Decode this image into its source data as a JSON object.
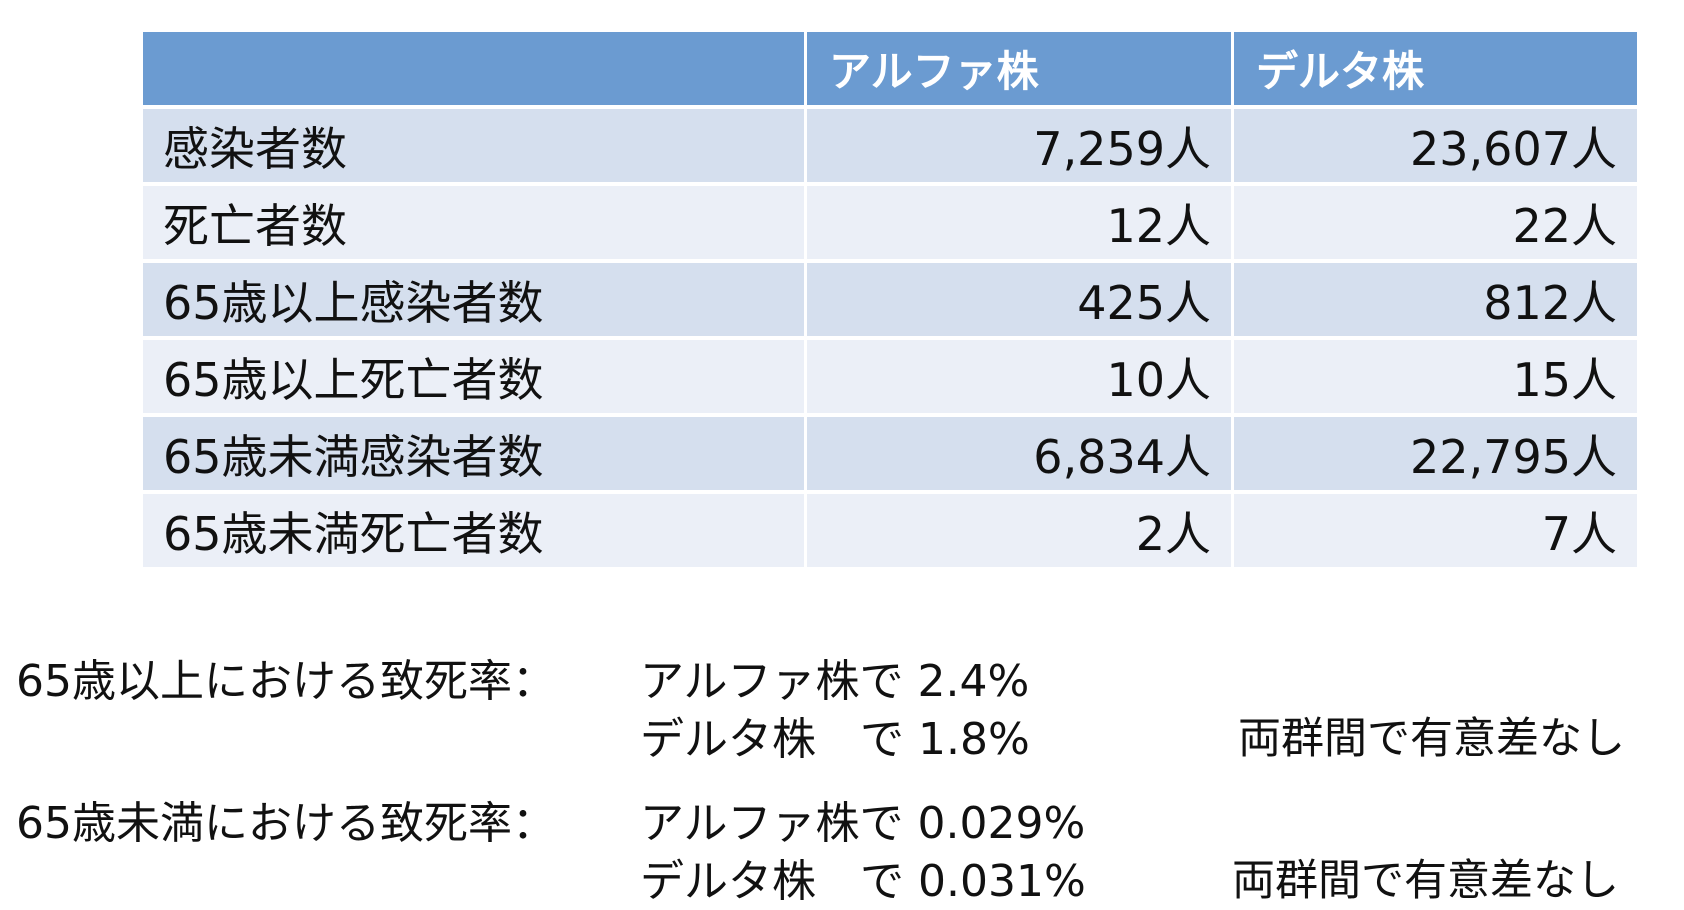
{
  "table": {
    "headers": [
      "",
      "アルファ株",
      "デルタ株"
    ],
    "rows": [
      {
        "label": "感染者数",
        "alpha": "7,259人",
        "delta": "23,607人"
      },
      {
        "label": "死亡者数",
        "alpha": "12人",
        "delta": "22人"
      },
      {
        "label": "65歳以上感染者数",
        "alpha": "425人",
        "delta": "812人"
      },
      {
        "label": "65歳以上死亡者数",
        "alpha": "10人",
        "delta": "15人"
      },
      {
        "label": "65歳未満感染者数",
        "alpha": "6,834人",
        "delta": "22,795人"
      },
      {
        "label": "65歳未満死亡者数",
        "alpha": "2人",
        "delta": "7人"
      }
    ]
  },
  "summary": {
    "over65": {
      "label": "65歳以上における致死率：",
      "alpha_line": "アルファ株で 2.4%",
      "delta_line": "デルタ株　で 1.8%",
      "note": "両群間で有意差なし"
    },
    "under65": {
      "label": "65歳未満における致死率：",
      "alpha_line": "アルファ株で 0.029%",
      "delta_line": "デルタ株　で 0.031%",
      "note": "両群間で有意差なし"
    }
  },
  "colors": {
    "header_bg": "#6b9bd1",
    "row_dark": "#d5dfee",
    "row_light": "#ebeff7"
  }
}
